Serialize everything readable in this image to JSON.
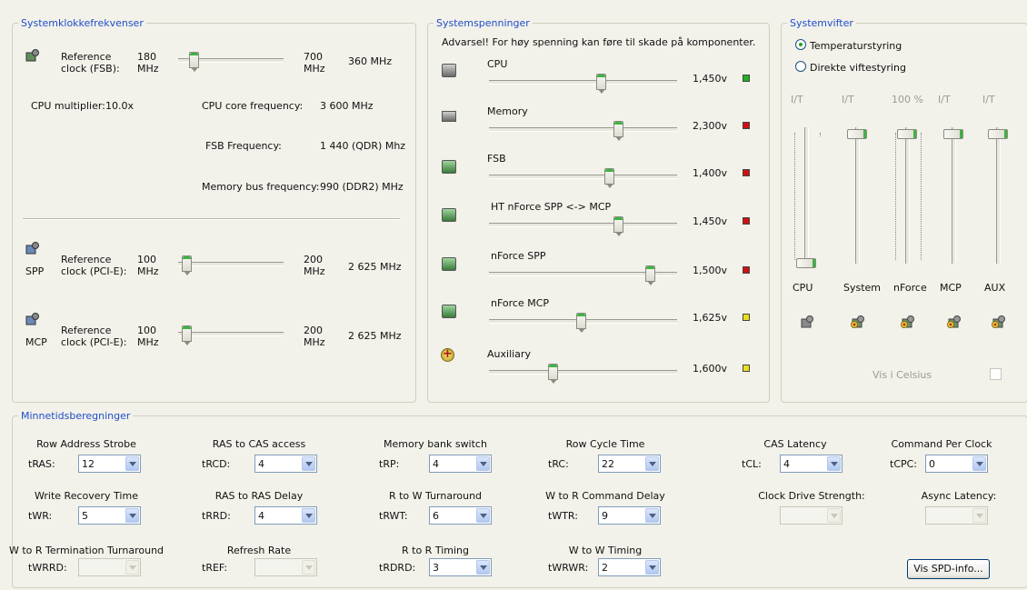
{
  "clock": {
    "title": "Systemklokkefrekvenser",
    "fsb": {
      "label1": "Reference",
      "label2": "clock (FSB):",
      "min": "180",
      "min_unit": "MHz",
      "max": "700",
      "max_unit": "MHz",
      "value": "360 MHz",
      "position": 0.08
    },
    "cpu_multiplier_label": "CPU multiplier:",
    "cpu_multiplier_value": "10.0x",
    "cpu_core_label": "CPU core frequency:",
    "cpu_core_value": "3 600 MHz",
    "fsb_freq_label": "FSB Frequency:",
    "fsb_freq_value": "1 440 (QDR) Mhz",
    "mem_bus_label": "Memory bus frequency:",
    "mem_bus_value": "990 (DDR2) MHz",
    "spp": {
      "name": "SPP",
      "label1": "Reference",
      "label2": "clock (PCI-E):",
      "min": "100",
      "min_unit": "MHz",
      "max": "200",
      "max_unit": "MHz",
      "value": "2 625 MHz",
      "position": 0.0
    },
    "mcp": {
      "name": "MCP",
      "label1": "Reference",
      "label2": "clock (PCI-E):",
      "min": "100",
      "min_unit": "MHz",
      "max": "200",
      "max_unit": "MHz",
      "value": "2 625 MHz",
      "position": 0.0
    }
  },
  "voltages": {
    "title": "Systemspenninger",
    "warning": "Advarsel! For høy spenning kan føre til skade på komponenter.",
    "items": [
      {
        "name": "CPU",
        "value": "1,450v",
        "position": 0.6,
        "status": "#21b321"
      },
      {
        "name": "Memory",
        "value": "2,300v",
        "position": 0.7,
        "status": "#d01010"
      },
      {
        "name": "FSB",
        "value": "1,400v",
        "position": 0.65,
        "status": "#d01010"
      },
      {
        "name": "HT nForce SPP <-> MCP",
        "value": "1,450v",
        "position": 0.7,
        "status": "#d01010"
      },
      {
        "name": "nForce SPP",
        "value": "1,500v",
        "position": 0.88,
        "status": "#d01010"
      },
      {
        "name": "nForce MCP",
        "value": "1,625v",
        "position": 0.49,
        "status": "#e8e020"
      },
      {
        "name": "Auxiliary",
        "value": "1,600v",
        "position": 0.33,
        "status": "#e8e020"
      }
    ]
  },
  "fans": {
    "title": "Systemvifter",
    "radio_temp": "Temperaturstyring",
    "radio_direct": "Direkte viftestyring",
    "items": [
      {
        "name": "CPU",
        "reading": "I/T",
        "level": 0.0
      },
      {
        "name": "System",
        "reading": "I/T",
        "level": 1.0
      },
      {
        "name": "nForce",
        "reading": "100 %",
        "level": 1.0
      },
      {
        "name": "MCP",
        "reading": "I/T",
        "level": 1.0
      },
      {
        "name": "AUX",
        "reading": "I/T",
        "level": 1.0
      }
    ],
    "celsius_label": "Vis i Celsius"
  },
  "memory": {
    "title": "Minnetidsberegninger",
    "row1": [
      {
        "heading": "Row Address Strobe",
        "abbr": "tRAS:",
        "value": "12"
      },
      {
        "heading": "RAS to CAS access",
        "abbr": "tRCD:",
        "value": "4"
      },
      {
        "heading": "Memory bank switch",
        "abbr": "tRP:",
        "value": "4"
      },
      {
        "heading": "Row Cycle Time",
        "abbr": "tRC:",
        "value": "22"
      },
      {
        "heading": "CAS Latency",
        "abbr": "tCL:",
        "value": "4"
      },
      {
        "heading": "Command Per Clock",
        "abbr": "tCPC:",
        "value": "0"
      }
    ],
    "row2": [
      {
        "heading": "Write Recovery Time",
        "abbr": "tWR:",
        "value": "5"
      },
      {
        "heading": "RAS to RAS Delay",
        "abbr": "tRRD:",
        "value": "4"
      },
      {
        "heading": "R to W Turnaround",
        "abbr": "tRWT:",
        "value": "6"
      },
      {
        "heading": "W to R Command Delay",
        "abbr": "tWTR:",
        "value": "9"
      },
      {
        "heading": "Clock Drive Strength:",
        "abbr": "",
        "value": ""
      },
      {
        "heading": "Async Latency:",
        "abbr": "",
        "value": ""
      }
    ],
    "row3": [
      {
        "heading": "W to R Termination Turnaround",
        "abbr": "tWRRD:",
        "value": ""
      },
      {
        "heading": "Refresh Rate",
        "abbr": "tREF:",
        "value": ""
      },
      {
        "heading": "R to R Timing",
        "abbr": "tRDRD:",
        "value": "3"
      },
      {
        "heading": "W to W Timing",
        "abbr": "tWRWR:",
        "value": "2"
      }
    ],
    "spd_button": "Vis SPD-info..."
  }
}
